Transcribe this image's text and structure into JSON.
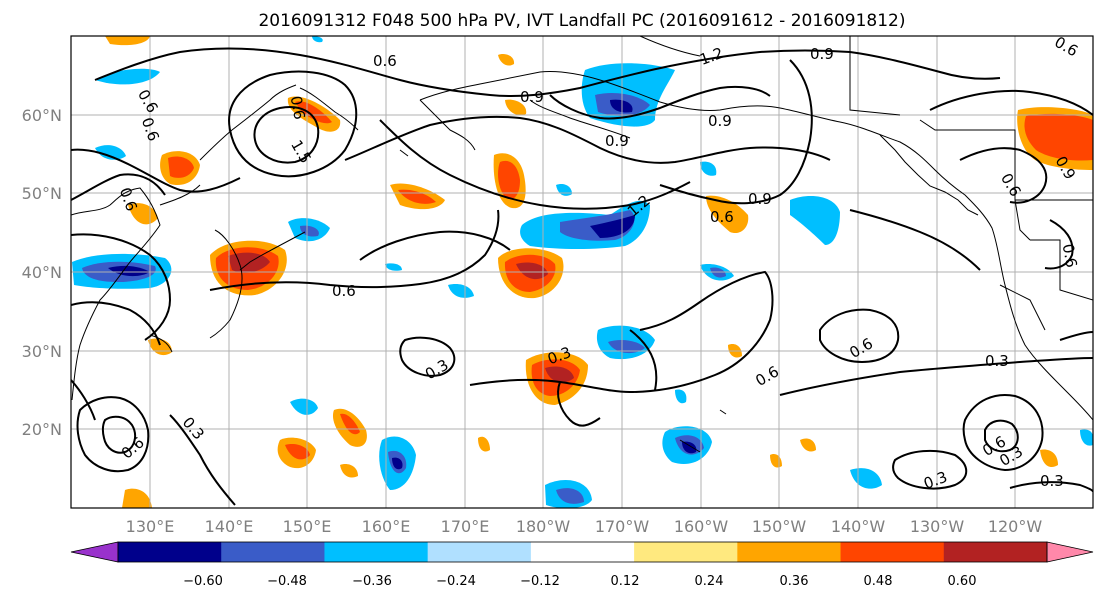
{
  "title": "2016091312 F048 500 hPa PV, IVT Landfall PC (2016091612 - 2016091812)",
  "lat_labels": [
    "60°N",
    "50°N",
    "40°N",
    "30°N",
    "20°N"
  ],
  "lon_labels": [
    "130°E",
    "140°E",
    "150°E",
    "160°E",
    "170°E",
    "180°W",
    "170°W",
    "160°W",
    "150°W",
    "140°W",
    "130°W",
    "120°W"
  ],
  "colorbar": {
    "colors": [
      "#9932cc",
      "#00008b",
      "#3a5cc8",
      "#00bfff",
      "#b0e0ff",
      "#ffffff",
      "#ffe97f",
      "#ffa500",
      "#ff4500",
      "#b22222",
      "#ff88aa"
    ],
    "ticks": [
      "−0.60",
      "−0.48",
      "−0.36",
      "−0.24",
      "−0.12",
      "0.12",
      "0.24",
      "0.36",
      "0.48",
      "0.60"
    ]
  },
  "contour_labels": [
    {
      "text": "0.6"
    },
    {
      "text": "0.9"
    },
    {
      "text": "1.2"
    },
    {
      "text": "0.9"
    },
    {
      "text": "0.6"
    },
    {
      "text": "0.6"
    },
    {
      "text": "1.5"
    },
    {
      "text": "0.9"
    },
    {
      "text": "0.9"
    },
    {
      "text": "0.6"
    },
    {
      "text": "0.9"
    },
    {
      "text": "1.2"
    },
    {
      "text": "0.6"
    },
    {
      "text": "0.6"
    },
    {
      "text": "0.6"
    },
    {
      "text": "0.6"
    },
    {
      "text": "0.3"
    },
    {
      "text": "0.3"
    },
    {
      "text": "0.6"
    },
    {
      "text": "0.6"
    },
    {
      "text": "0.3"
    },
    {
      "text": "0.6"
    },
    {
      "text": "0.3"
    },
    {
      "text": "0.6"
    },
    {
      "text": "0.3"
    },
    {
      "text": "0.3"
    },
    {
      "text": "0.3"
    },
    {
      "text": "0.6"
    },
    {
      "text": "0.6"
    },
    {
      "text": "0.9"
    }
  ]
}
